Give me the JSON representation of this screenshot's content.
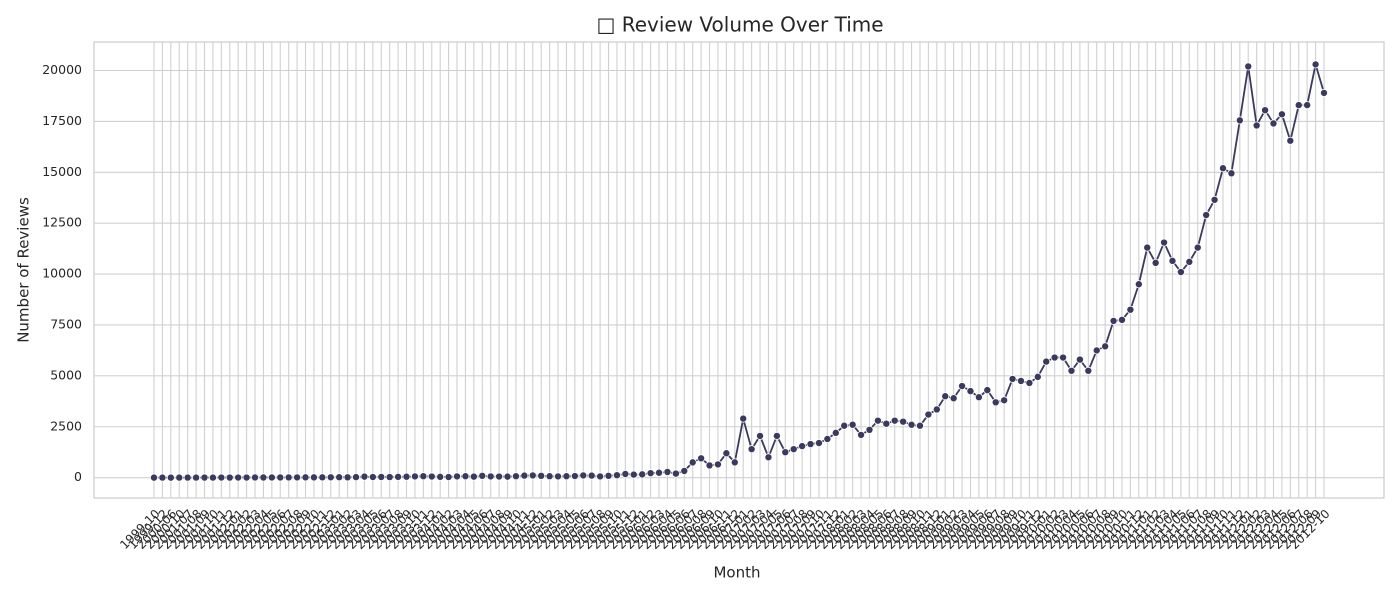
{
  "chart_data": {
    "type": "line",
    "title": "□ Review Volume Over Time",
    "x_label": "Month",
    "y_label": "Number of Reviews",
    "categories": [
      "1999-10",
      "1999-12",
      "2000-06",
      "2000-10",
      "2001-07",
      "2001-08",
      "2001-09",
      "2001-10",
      "2001-11",
      "2001-12",
      "2002-01",
      "2002-02",
      "2002-03",
      "2002-04",
      "2002-05",
      "2002-06",
      "2002-07",
      "2002-08",
      "2002-09",
      "2002-10",
      "2002-11",
      "2002-12",
      "2003-01",
      "2003-02",
      "2003-03",
      "2003-04",
      "2003-05",
      "2003-06",
      "2003-07",
      "2003-08",
      "2003-09",
      "2003-10",
      "2003-11",
      "2003-12",
      "2004-01",
      "2004-02",
      "2004-03",
      "2004-04",
      "2004-05",
      "2004-06",
      "2004-07",
      "2004-08",
      "2004-09",
      "2004-10",
      "2004-11",
      "2004-12",
      "2005-01",
      "2005-02",
      "2005-03",
      "2005-04",
      "2005-05",
      "2005-06",
      "2005-07",
      "2005-08",
      "2005-09",
      "2005-10",
      "2005-11",
      "2005-12",
      "2006-01",
      "2006-02",
      "2006-03",
      "2006-04",
      "2006-05",
      "2006-06",
      "2006-07",
      "2006-08",
      "2006-09",
      "2006-10",
      "2006-11",
      "2006-12",
      "2007-01",
      "2007-02",
      "2007-03",
      "2007-04",
      "2007-05",
      "2007-06",
      "2007-07",
      "2007-08",
      "2007-09",
      "2007-10",
      "2007-11",
      "2007-12",
      "2008-01",
      "2008-02",
      "2008-03",
      "2008-04",
      "2008-05",
      "2008-06",
      "2008-07",
      "2008-08",
      "2008-09",
      "2008-10",
      "2008-11",
      "2008-12",
      "2009-01",
      "2009-02",
      "2009-03",
      "2009-04",
      "2009-05",
      "2009-06",
      "2009-07",
      "2009-08",
      "2009-09",
      "2009-10",
      "2009-11",
      "2009-12",
      "2010-01",
      "2010-02",
      "2010-03",
      "2010-04",
      "2010-05",
      "2010-06",
      "2010-07",
      "2010-08",
      "2010-09",
      "2010-10",
      "2010-11",
      "2010-12",
      "2011-01",
      "2011-02",
      "2011-03",
      "2011-04",
      "2011-05",
      "2011-06",
      "2011-07",
      "2011-08",
      "2011-09",
      "2011-10",
      "2011-11",
      "2011-12",
      "2012-01",
      "2012-02",
      "2012-03",
      "2012-04",
      "2012-05",
      "2012-06",
      "2012-07",
      "2012-08",
      "2012-09",
      "2012-10"
    ],
    "series": [
      {
        "name": "Number of Reviews",
        "color": "#3b3a5e",
        "values": [
          1,
          2,
          1,
          2,
          3,
          2,
          4,
          3,
          5,
          4,
          6,
          5,
          8,
          7,
          9,
          10,
          12,
          11,
          14,
          13,
          15,
          18,
          20,
          16,
          25,
          50,
          30,
          35,
          28,
          40,
          45,
          60,
          70,
          55,
          40,
          30,
          60,
          70,
          50,
          90,
          60,
          55,
          50,
          70,
          100,
          110,
          90,
          70,
          60,
          70,
          80,
          110,
          100,
          60,
          90,
          120,
          180,
          150,
          160,
          220,
          240,
          280,
          200,
          330,
          750,
          950,
          600,
          650,
          1200,
          750,
          2900,
          1400,
          2050,
          1000,
          2050,
          1250,
          1400,
          1550,
          1650,
          1700,
          1900,
          2200,
          2550,
          2600,
          2100,
          2350,
          2800,
          2650,
          2800,
          2750,
          2600,
          2550,
          3100,
          3350,
          4000,
          3900,
          4500,
          4250,
          3950,
          4300,
          3700,
          3800,
          4850,
          4750,
          4650,
          4950,
          5700,
          5900,
          5900,
          5250,
          5800,
          5250,
          6250,
          6450,
          7700,
          7750,
          8250,
          9500,
          11300,
          10550,
          11550,
          10650,
          10100,
          10600,
          11300,
          12900,
          13650,
          15200,
          14950,
          17550,
          20200,
          17300,
          18050,
          17400,
          17850,
          16550,
          18300,
          18300,
          20300,
          18900
        ]
      }
    ],
    "ylim": [
      -1000,
      21400
    ],
    "yticks": [
      0,
      2500,
      5000,
      7500,
      10000,
      12500,
      15000,
      17500,
      20000
    ],
    "grid": true
  }
}
